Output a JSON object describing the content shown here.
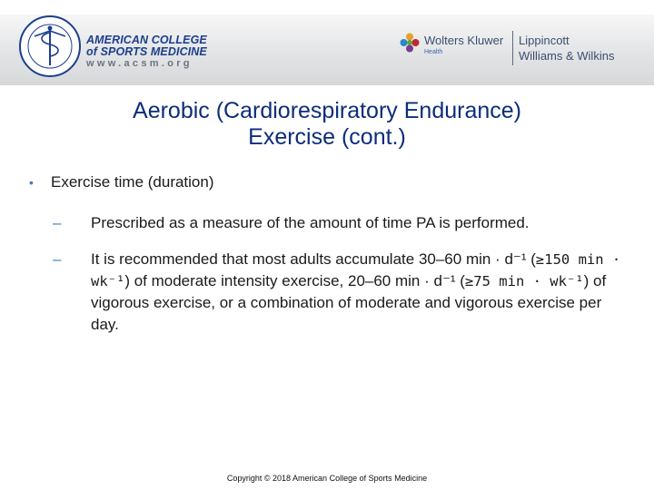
{
  "header": {
    "acsm_line1": "AMERICAN COLLEGE",
    "acsm_line2": "of SPORTS MEDICINE",
    "acsm_url": "www.acsm.org",
    "wk_name": "Wolters Kluwer",
    "wk_sub": "Health",
    "lww_line1": "Lippincott",
    "lww_line2": "Williams & Wilkins",
    "brand_blue": "#1c3f8c",
    "wk_colors": [
      "#e5a228",
      "#c2272d",
      "#7a3b8f",
      "#2b87c8",
      "#5aa63f"
    ]
  },
  "title": {
    "line1": "Aerobic (Cardiorespiratory Endurance)",
    "line2": "Exercise (cont.)"
  },
  "bullets": {
    "item1": "Exercise time (duration)",
    "sub1": "Prescribed as a measure of the amount of time PA is performed.",
    "sub2": {
      "part1": "It is recommended that most adults accumulate 30–60 min · d⁻¹ (",
      "code1": "≥150 min · wk⁻¹",
      "part2": ") of moderate intensity exercise, 20–60 min · d⁻¹ (",
      "code2": "≥75 min · wk⁻¹",
      "part3": ") of vigorous exercise, or a combination of moderate and vigorous exercise per day."
    }
  },
  "footer": {
    "copyright": "Copyright © 2018 American College of Sports Medicine"
  }
}
